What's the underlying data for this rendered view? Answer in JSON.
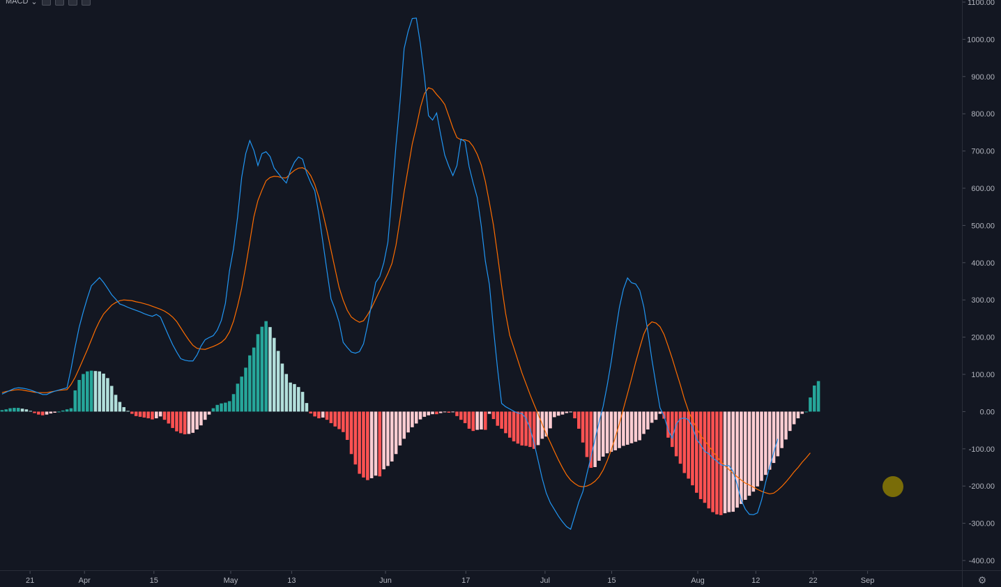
{
  "header": {
    "indicator_name": "MACD",
    "dropdown_glyph": "⌄"
  },
  "colors": {
    "background": "#131722",
    "macd_line": "#2196f3",
    "signal_line": "#ff6d00",
    "hist_pos_strong": "#26a69a",
    "hist_pos_weak": "#b2dfdb",
    "hist_neg_strong": "#ff5252",
    "hist_neg_weak": "#ffcdd2",
    "highlight": "#9c8a00"
  },
  "icons": {
    "settings": "gear-icon"
  },
  "chart_data": {
    "type": "line",
    "title": "",
    "ylim": [
      -400,
      1100
    ],
    "y_ticks": [
      "1100.00",
      "1000.00",
      "900.00",
      "800.00",
      "700.00",
      "600.00",
      "500.00",
      "400.00",
      "300.00",
      "200.00",
      "100.00",
      "0.00",
      "-100.00",
      "-200.00",
      "-300.00",
      "-400.00"
    ],
    "x_ticks": [
      "21",
      "Apr",
      "15",
      "May",
      "13",
      "Jun",
      "17",
      "Jul",
      "15",
      "Aug",
      "12",
      "22",
      "Sep"
    ],
    "x_tick_index": [
      6.9,
      20.3,
      37.4,
      56.3,
      71.3,
      94.4,
      114.2,
      133.7,
      150.1,
      171.3,
      185.6,
      199.7,
      213.1
    ],
    "x_range": [
      -0.5,
      224.5
    ],
    "series": [
      {
        "key": "macd",
        "values": [
          47,
          52,
          57,
          62,
          64,
          63,
          61,
          58,
          54,
          50,
          46,
          46,
          51,
          55,
          58,
          61,
          64,
          115,
          174,
          227,
          268,
          305,
          338,
          349,
          360,
          347,
          331,
          314,
          302,
          289,
          285,
          280,
          276,
          272,
          268,
          263,
          259,
          256,
          261,
          254,
          229,
          204,
          180,
          160,
          142,
          138,
          136,
          136,
          152,
          176,
          193,
          199,
          204,
          219,
          245,
          291,
          378,
          438,
          523,
          629,
          693,
          728,
          702,
          661,
          693,
          698,
          685,
          654,
          640,
          626,
          614,
          647,
          670,
          684,
          678,
          641,
          615,
          593,
          531,
          455,
          378,
          303,
          275,
          240,
          186,
          172,
          160,
          157,
          161,
          182,
          232,
          290,
          347,
          363,
          400,
          455,
          581,
          716,
          834,
          975,
          1022,
          1056,
          1057,
          988,
          899,
          795,
          783,
          802,
          744,
          689,
          659,
          634,
          661,
          732,
          725,
          658,
          614,
          575,
          498,
          404,
          341,
          222,
          115,
          22,
          13,
          7,
          1,
          -4,
          -5,
          -18,
          -45,
          -85,
          -132,
          -180,
          -219,
          -245,
          -263,
          -281,
          -296,
          -309,
          -316,
          -280,
          -243,
          -215,
          -167,
          -122,
          -74,
          -28,
          14,
          71,
          135,
          210,
          280,
          329,
          359,
          346,
          343,
          326,
          282,
          215,
          140,
          73,
          10,
          -12,
          -49,
          -72,
          -34,
          -19,
          -17,
          -22,
          -41,
          -74,
          -89,
          -107,
          -113,
          -125,
          -133,
          -143,
          -145,
          -145,
          -161,
          -196,
          -238,
          -262,
          -276,
          -277,
          -272,
          -238,
          -190,
          -149,
          -110,
          -73
        ],
        "y_from_x": [
          0,
          226
        ]
      },
      {
        "key": "signal",
        "values": [
          51,
          54,
          56,
          58,
          59,
          58,
          56,
          54,
          52,
          51,
          51,
          51,
          53,
          55,
          57,
          58,
          59,
          73,
          92,
          116,
          141,
          166,
          193,
          220,
          243,
          262,
          274,
          286,
          293,
          298,
          300,
          299,
          298,
          295,
          293,
          290,
          287,
          283,
          279,
          275,
          270,
          263,
          254,
          242,
          225,
          208,
          192,
          178,
          170,
          168,
          167,
          171,
          175,
          180,
          186,
          196,
          214,
          243,
          284,
          331,
          390,
          456,
          523,
          567,
          595,
          620,
          629,
          632,
          631,
          628,
          628,
          639,
          648,
          654,
          655,
          649,
          634,
          610,
          576,
          533,
          486,
          434,
          383,
          333,
          299,
          272,
          254,
          246,
          240,
          244,
          260,
          279,
          302,
          325,
          348,
          371,
          398,
          447,
          517,
          590,
          654,
          719,
          765,
          817,
          854,
          870,
          866,
          852,
          840,
          825,
          794,
          762,
          736,
          730,
          730,
          726,
          712,
          691,
          662,
          618,
          561,
          500,
          421,
          338,
          263,
          205,
          172,
          138,
          104,
          75,
          46,
          19,
          -7,
          -34,
          -60,
          -83,
          -107,
          -130,
          -151,
          -170,
          -184,
          -193,
          -200,
          -202,
          -200,
          -195,
          -187,
          -175,
          -157,
          -132,
          -103,
          -69,
          -32,
          8,
          48,
          89,
          132,
          171,
          208,
          231,
          241,
          238,
          228,
          207,
          176,
          143,
          107,
          72,
          34,
          2,
          -23,
          -44,
          -64,
          -78,
          -92,
          -107,
          -121,
          -134,
          -146,
          -156,
          -166,
          -175,
          -184,
          -192,
          -197,
          -203,
          -209,
          -214,
          -218,
          -221,
          -219,
          -211,
          -201,
          -189,
          -176,
          -162,
          -150,
          -136,
          -124,
          -111
        ]
      },
      {
        "key": "histogram",
        "values": [
          4,
          6,
          9,
          10,
          10,
          8,
          6,
          2,
          -4,
          -8,
          -10,
          -8,
          -5,
          -3,
          0,
          3,
          6,
          9,
          57,
          85,
          101,
          108,
          110,
          109,
          108,
          102,
          90,
          69,
          45,
          26,
          12,
          2,
          -6,
          -12,
          -14,
          -16,
          -18,
          -21,
          -18,
          -13,
          -22,
          -32,
          -44,
          -53,
          -58,
          -61,
          -60,
          -57,
          -48,
          -37,
          -22,
          -8,
          9,
          18,
          22,
          24,
          28,
          47,
          75,
          94,
          118,
          151,
          172,
          208,
          228,
          243,
          227,
          198,
          163,
          129,
          101,
          78,
          74,
          66,
          53,
          23,
          -5,
          -13,
          -18,
          -16,
          -22,
          -31,
          -40,
          -47,
          -55,
          -76,
          -114,
          -142,
          -167,
          -177,
          -184,
          -179,
          -172,
          -174,
          -155,
          -146,
          -134,
          -114,
          -91,
          -73,
          -56,
          -42,
          -32,
          -21,
          -14,
          -10,
          -7,
          -7,
          -4,
          -1,
          -3,
          -1,
          -12,
          -22,
          -31,
          -46,
          -52,
          -49,
          -48,
          -49,
          -6,
          -20,
          -38,
          -46,
          -58,
          -70,
          -80,
          -86,
          -91,
          -92,
          -95,
          -100,
          -90,
          -73,
          -67,
          -45,
          -15,
          -11,
          -8,
          -4,
          -2,
          -18,
          -46,
          -83,
          -122,
          -151,
          -149,
          -132,
          -121,
          -112,
          -108,
          -104,
          -98,
          -92,
          -89,
          -85,
          -81,
          -77,
          -60,
          -48,
          -30,
          -22,
          -6,
          -19,
          -70,
          -95,
          -120,
          -140,
          -165,
          -180,
          -198,
          -218,
          -235,
          -245,
          -260,
          -270,
          -276,
          -278,
          -273,
          -270,
          -269,
          -258,
          -248,
          -237,
          -226,
          -215,
          -201,
          -186,
          -170,
          -156,
          -138,
          -120,
          -98,
          -75,
          -52,
          -34,
          -18,
          -6,
          0,
          38,
          70,
          82
        ]
      }
    ],
    "legend": "none",
    "grid": false
  }
}
